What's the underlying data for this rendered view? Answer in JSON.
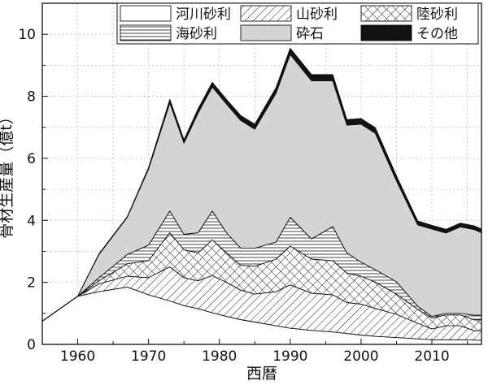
{
  "chart_data": {
    "type": "area",
    "stacked": true,
    "title": "",
    "xlabel": "西暦",
    "ylabel": "骨材生産量（億t）",
    "xlim": [
      1955,
      2017
    ],
    "ylim": [
      0,
      11
    ],
    "x_ticks": [
      1960,
      1970,
      1980,
      1990,
      2000,
      2010
    ],
    "y_ticks": [
      0,
      2,
      4,
      6,
      8,
      10
    ],
    "grid": "dotted",
    "legend_position": "top-right",
    "x": [
      1955,
      1960,
      1963,
      1967,
      1970,
      1973,
      1975,
      1977,
      1979,
      1981,
      1983,
      1985,
      1988,
      1990,
      1993,
      1996,
      1998,
      2000,
      2002,
      2005,
      2008,
      2010,
      2012,
      2014,
      2016,
      2017
    ],
    "series": [
      {
        "name": "河川砂利",
        "fill": "white",
        "values": [
          0.75,
          1.55,
          1.7,
          1.85,
          1.6,
          1.4,
          1.25,
          1.15,
          1.02,
          0.9,
          0.8,
          0.72,
          0.6,
          0.52,
          0.45,
          0.4,
          0.35,
          0.3,
          0.26,
          0.22,
          0.18,
          0.15,
          0.15,
          0.15,
          0.14,
          0.14
        ]
      },
      {
        "name": "山砂利",
        "fill": "diagonal-hatch",
        "values": [
          0.0,
          0.0,
          0.25,
          0.35,
          0.55,
          1.1,
          0.9,
          0.9,
          1.2,
          1.1,
          0.95,
          0.9,
          1.1,
          1.4,
          1.2,
          1.2,
          1.0,
          1.0,
          0.9,
          0.75,
          0.5,
          0.35,
          0.45,
          0.45,
          0.3,
          0.3
        ]
      },
      {
        "name": "陸砂利",
        "fill": "cross-hatch",
        "values": [
          0.0,
          0.0,
          0.1,
          0.4,
          0.55,
          1.1,
          0.9,
          0.9,
          1.15,
          0.95,
          0.8,
          0.9,
          1.05,
          1.25,
          1.1,
          1.1,
          0.95,
          0.9,
          0.85,
          0.65,
          0.45,
          0.35,
          0.35,
          0.35,
          0.35,
          0.35
        ]
      },
      {
        "name": "海砂利",
        "fill": "horizontal-lines",
        "values": [
          0.0,
          0.0,
          0.1,
          0.3,
          0.5,
          0.7,
          0.5,
          0.65,
          0.93,
          0.65,
          0.55,
          0.58,
          0.55,
          0.93,
          0.65,
          1.1,
          0.65,
          0.45,
          0.4,
          0.4,
          0.1,
          0.05,
          0.05,
          0.05,
          0.15,
          0.15
        ]
      },
      {
        "name": "砕石",
        "fill": "gray",
        "values": [
          0.0,
          0.0,
          0.75,
          1.2,
          2.45,
          3.48,
          2.94,
          3.86,
          4.0,
          4.15,
          4.12,
          3.84,
          4.8,
          5.25,
          5.1,
          4.7,
          4.12,
          4.45,
          4.4,
          3.25,
          2.62,
          2.82,
          2.59,
          2.79,
          2.76,
          2.66
        ]
      },
      {
        "name": "その他",
        "fill": "black",
        "values": [
          0.0,
          0.0,
          0.02,
          0.02,
          0.05,
          0.12,
          0.11,
          0.14,
          0.15,
          0.15,
          0.16,
          0.16,
          0.18,
          0.2,
          0.2,
          0.2,
          0.18,
          0.18,
          0.18,
          0.16,
          0.13,
          0.12,
          0.12,
          0.12,
          0.12,
          0.12
        ]
      }
    ]
  }
}
